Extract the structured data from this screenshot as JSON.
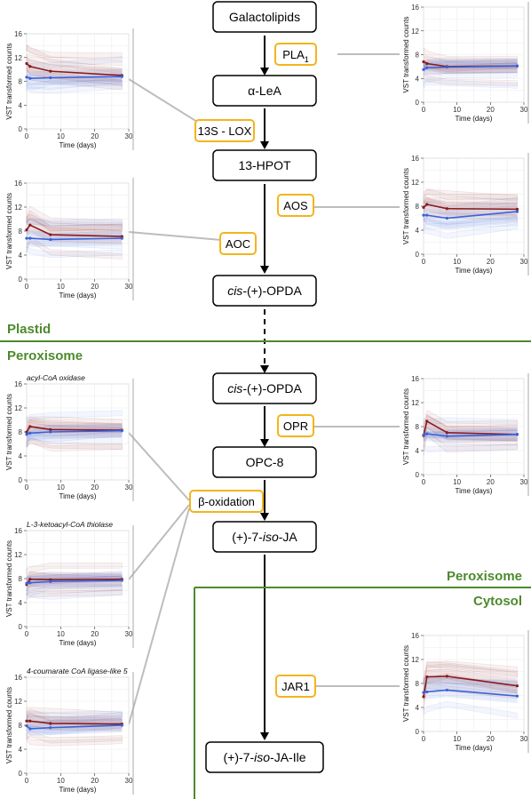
{
  "metabolites": [
    {
      "id": "m0",
      "parts": [
        {
          "t": "Galactolipids",
          "i": false
        }
      ]
    },
    {
      "id": "m1",
      "parts": [
        {
          "t": "α-LeA",
          "i": false
        }
      ]
    },
    {
      "id": "m2",
      "parts": [
        {
          "t": "13-HPOT",
          "i": false
        }
      ]
    },
    {
      "id": "m3",
      "parts": [
        {
          "t": "cis-",
          "i": true
        },
        {
          "t": "(+)-OPDA",
          "i": false
        }
      ]
    },
    {
      "id": "m4",
      "parts": [
        {
          "t": "cis-",
          "i": true
        },
        {
          "t": "(+)-OPDA",
          "i": false
        }
      ]
    },
    {
      "id": "m5",
      "parts": [
        {
          "t": "OPC-8",
          "i": false
        }
      ]
    },
    {
      "id": "m6",
      "parts": [
        {
          "t": "(+)-7-",
          "i": false
        },
        {
          "t": "iso",
          "i": true
        },
        {
          "t": "-JA",
          "i": false
        }
      ]
    },
    {
      "id": "m7",
      "parts": [
        {
          "t": "(+)-7-",
          "i": false
        },
        {
          "t": "iso",
          "i": true
        },
        {
          "t": "-JA-Ile",
          "i": false
        }
      ]
    }
  ],
  "enzymes": [
    {
      "id": "e0",
      "label": "PLA",
      "sub": "1"
    },
    {
      "id": "e1",
      "label": "13S - LOX",
      "sub": ""
    },
    {
      "id": "e2",
      "label": "AOS",
      "sub": ""
    },
    {
      "id": "e3",
      "label": "AOC",
      "sub": ""
    },
    {
      "id": "e4",
      "label": "OPR",
      "sub": ""
    },
    {
      "id": "e5",
      "label": "β-oxidation",
      "sub": ""
    },
    {
      "id": "e6",
      "label": "JAR1",
      "sub": ""
    }
  ],
  "compartments": {
    "plastid": "Plastid",
    "peroxisome_top": "Peroxisome",
    "peroxisome_bottom": "Peroxisome",
    "cytosol": "Cytosol"
  },
  "colors": {
    "compartment": "#4d8a2d",
    "enzyme_border": "#f2b51b",
    "red_series": "#8b1a1a",
    "blue_series": "#3a62d8",
    "connector": "#bdbdbd"
  },
  "chart_data": [
    {
      "id": "c0",
      "type": "line",
      "title": "",
      "xlabel": "Time (days)",
      "ylabel": "VST transformed counts",
      "xlim": [
        0,
        30
      ],
      "ylim": [
        0,
        16
      ],
      "xticks": [
        0,
        10,
        20,
        30
      ],
      "yticks": [
        0,
        4,
        8,
        12,
        16
      ],
      "grid": true,
      "x": [
        0,
        1,
        7,
        28
      ],
      "series": [
        {
          "values": [
            11.0,
            10.5,
            9.7,
            9.0
          ],
          "color": "red"
        },
        {
          "values": [
            8.7,
            8.5,
            8.6,
            8.8
          ],
          "color": "blue"
        }
      ]
    },
    {
      "id": "c1",
      "type": "line",
      "title": "",
      "xlabel": "Time (days)",
      "ylabel": "VST transformed counts",
      "xlim": [
        0,
        30
      ],
      "ylim": [
        0,
        16
      ],
      "xticks": [
        0,
        10,
        20,
        30
      ],
      "yticks": [
        0,
        4,
        8,
        12,
        16
      ],
      "grid": true,
      "x": [
        0,
        1,
        7,
        28
      ],
      "series": [
        {
          "values": [
            6.8,
            6.5,
            6.0,
            6.1
          ],
          "color": "red"
        },
        {
          "values": [
            5.5,
            5.8,
            5.9,
            6.1
          ],
          "color": "blue"
        }
      ]
    },
    {
      "id": "c2",
      "type": "line",
      "title": "",
      "xlabel": "Time (days)",
      "ylabel": "VST transformed counts",
      "xlim": [
        0,
        30
      ],
      "ylim": [
        0,
        16
      ],
      "xticks": [
        0,
        10,
        20,
        30
      ],
      "yticks": [
        0,
        4,
        8,
        12,
        16
      ],
      "grid": true,
      "x": [
        0,
        1,
        7,
        28
      ],
      "series": [
        {
          "values": [
            8.2,
            9.0,
            7.4,
            7.1
          ],
          "color": "red"
        },
        {
          "values": [
            6.8,
            6.8,
            6.6,
            6.8
          ],
          "color": "blue"
        }
      ]
    },
    {
      "id": "c3",
      "type": "line",
      "title": "",
      "xlabel": "Time (days)",
      "ylabel": "VST transformed counts",
      "xlim": [
        0,
        30
      ],
      "ylim": [
        0,
        16
      ],
      "xticks": [
        0,
        10,
        20,
        30
      ],
      "yticks": [
        0,
        4,
        8,
        12,
        16
      ],
      "grid": true,
      "x": [
        0,
        1,
        7,
        28
      ],
      "series": [
        {
          "values": [
            7.8,
            8.3,
            7.6,
            7.5
          ],
          "color": "red"
        },
        {
          "values": [
            6.5,
            6.5,
            6.0,
            7.1
          ],
          "color": "blue"
        }
      ]
    },
    {
      "id": "c4",
      "type": "line",
      "title": "acyl-CoA oxidase",
      "xlabel": "Time (days)",
      "ylabel": "VST transformed counts",
      "xlim": [
        0,
        30
      ],
      "ylim": [
        0,
        16
      ],
      "xticks": [
        0,
        10,
        20,
        30
      ],
      "yticks": [
        0,
        4,
        8,
        12,
        16
      ],
      "grid": true,
      "x": [
        0,
        1,
        7,
        28
      ],
      "series": [
        {
          "values": [
            8.0,
            8.9,
            8.4,
            8.3
          ],
          "color": "red"
        },
        {
          "values": [
            7.6,
            7.8,
            8.0,
            8.2
          ],
          "color": "blue"
        }
      ]
    },
    {
      "id": "c5",
      "type": "line",
      "title": "",
      "xlabel": "Time (days)",
      "ylabel": "VST transformed counts",
      "xlim": [
        0,
        30
      ],
      "ylim": [
        0,
        16
      ],
      "xticks": [
        0,
        10,
        20,
        30
      ],
      "yticks": [
        0,
        4,
        8,
        12,
        16
      ],
      "grid": true,
      "x": [
        0,
        1,
        7,
        28
      ],
      "series": [
        {
          "values": [
            6.5,
            8.9,
            7.0,
            6.7
          ],
          "color": "red"
        },
        {
          "values": [
            6.6,
            6.8,
            6.4,
            6.7
          ],
          "color": "blue"
        }
      ]
    },
    {
      "id": "c6",
      "type": "line",
      "title": "L-3-ketoacyl-CoA thiolase",
      "xlabel": "Time (days)",
      "ylabel": "VST transformed counts",
      "xlim": [
        0,
        30
      ],
      "ylim": [
        0,
        16
      ],
      "xticks": [
        0,
        10,
        20,
        30
      ],
      "yticks": [
        0,
        4,
        8,
        12,
        16
      ],
      "grid": true,
      "x": [
        0,
        1,
        7,
        28
      ],
      "series": [
        {
          "values": [
            7.0,
            7.9,
            7.8,
            7.9
          ],
          "color": "red"
        },
        {
          "values": [
            7.2,
            7.3,
            7.5,
            7.7
          ],
          "color": "blue"
        }
      ]
    },
    {
      "id": "c7",
      "type": "line",
      "title": "4-coumarate CoA ligase-like 5",
      "xlabel": "Time (days)",
      "ylabel": "VST transformed counts",
      "xlim": [
        0,
        30
      ],
      "ylim": [
        0,
        16
      ],
      "xticks": [
        0,
        10,
        20,
        30
      ],
      "yticks": [
        0,
        4,
        8,
        12,
        16
      ],
      "grid": true,
      "x": [
        0,
        1,
        7,
        28
      ],
      "series": [
        {
          "values": [
            8.7,
            8.7,
            8.3,
            8.2
          ],
          "color": "red"
        },
        {
          "values": [
            7.9,
            7.4,
            7.6,
            8.0
          ],
          "color": "blue"
        }
      ]
    },
    {
      "id": "c8",
      "type": "line",
      "title": "",
      "xlabel": "Time (days)",
      "ylabel": "VST transformed counts",
      "xlim": [
        0,
        30
      ],
      "ylim": [
        0,
        16
      ],
      "xticks": [
        0,
        10,
        20,
        30
      ],
      "yticks": [
        0,
        4,
        8,
        12,
        16
      ],
      "grid": true,
      "x": [
        0,
        1,
        7,
        28
      ],
      "series": [
        {
          "values": [
            5.8,
            9.1,
            9.2,
            7.6
          ],
          "color": "red"
        },
        {
          "values": [
            6.5,
            6.6,
            6.9,
            5.9
          ],
          "color": "blue"
        }
      ]
    }
  ]
}
